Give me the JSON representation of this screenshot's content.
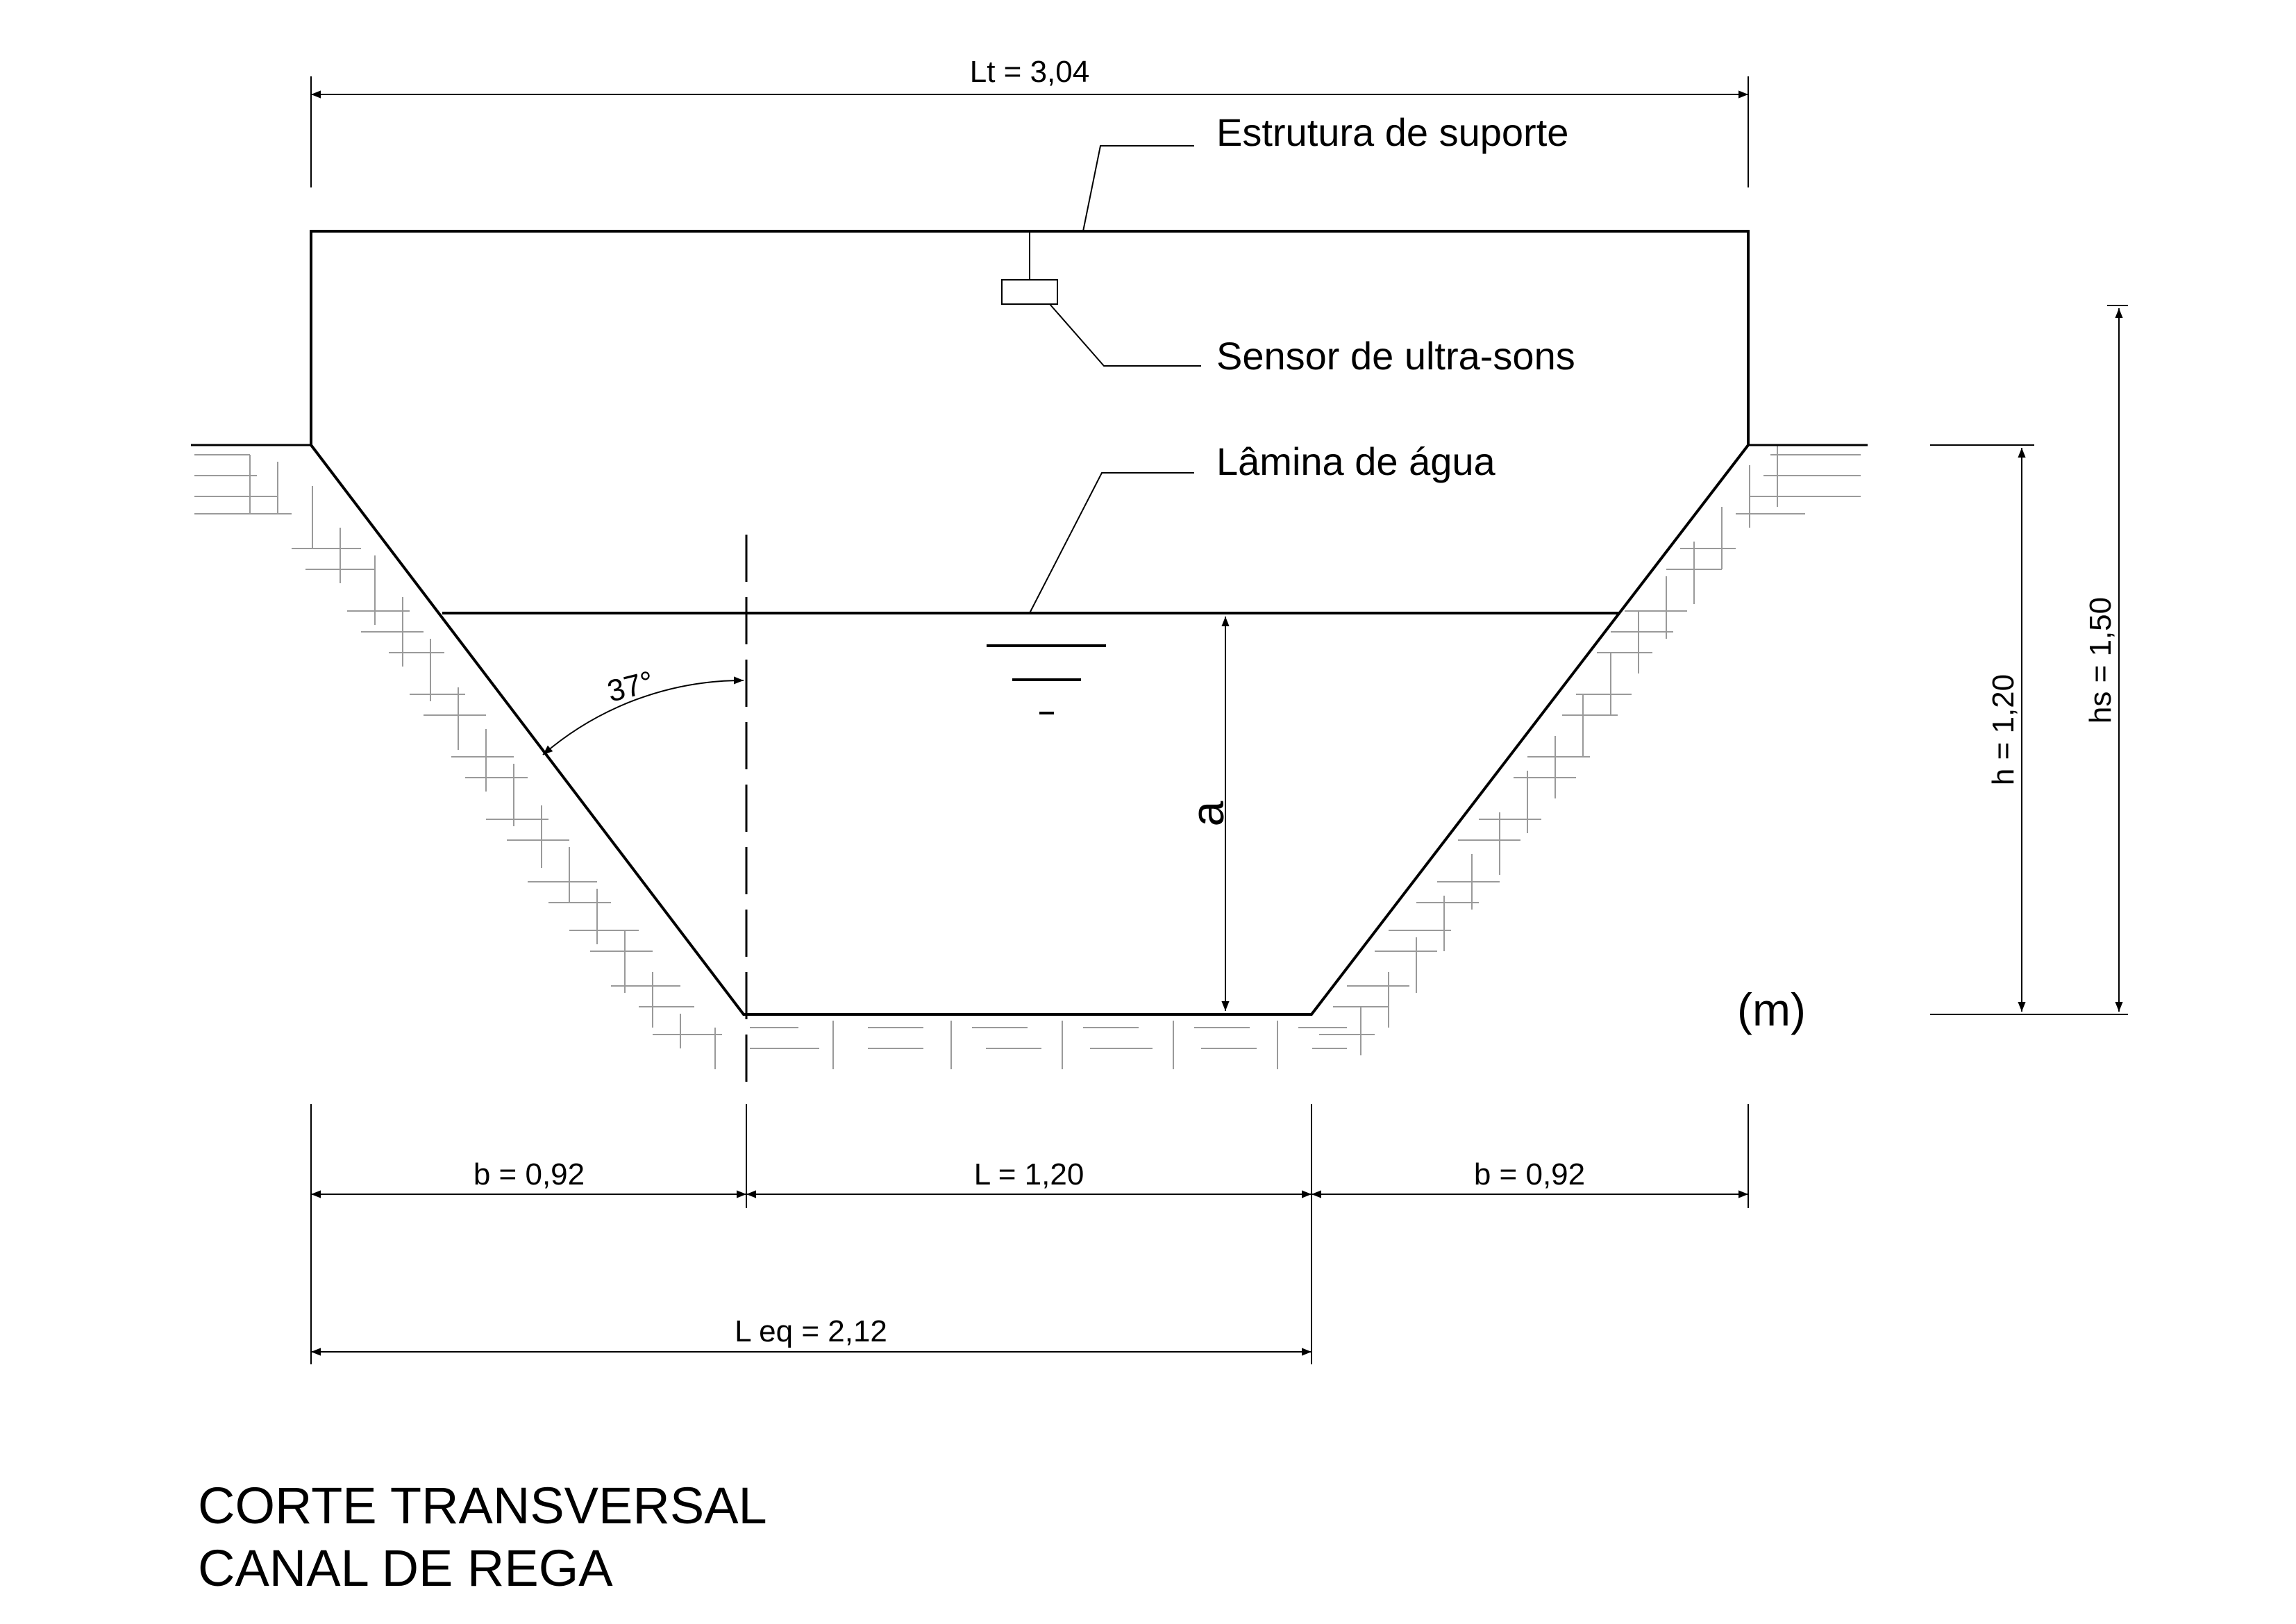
{
  "diagram": {
    "title_line1": "CORTE TRANSVERSAL",
    "title_line2": "CANAL DE REGA",
    "units": "(m)"
  },
  "labels": {
    "support_structure": "Estrutura de suporte",
    "ultrasonic_sensor": "Sensor de ultra-sons",
    "water_surface": "Lâmina de água",
    "water_depth": "a",
    "angle": "37°"
  },
  "dimensions": {
    "total_width": "Lt = 3,04",
    "left_bank": "b = 0,92",
    "bottom_width": "L = 1,20",
    "right_bank": "b = 0,92",
    "equivalent_width": "L eq = 2,12",
    "channel_height": "h = 1,20",
    "sensor_height": "hs = 1,50"
  }
}
